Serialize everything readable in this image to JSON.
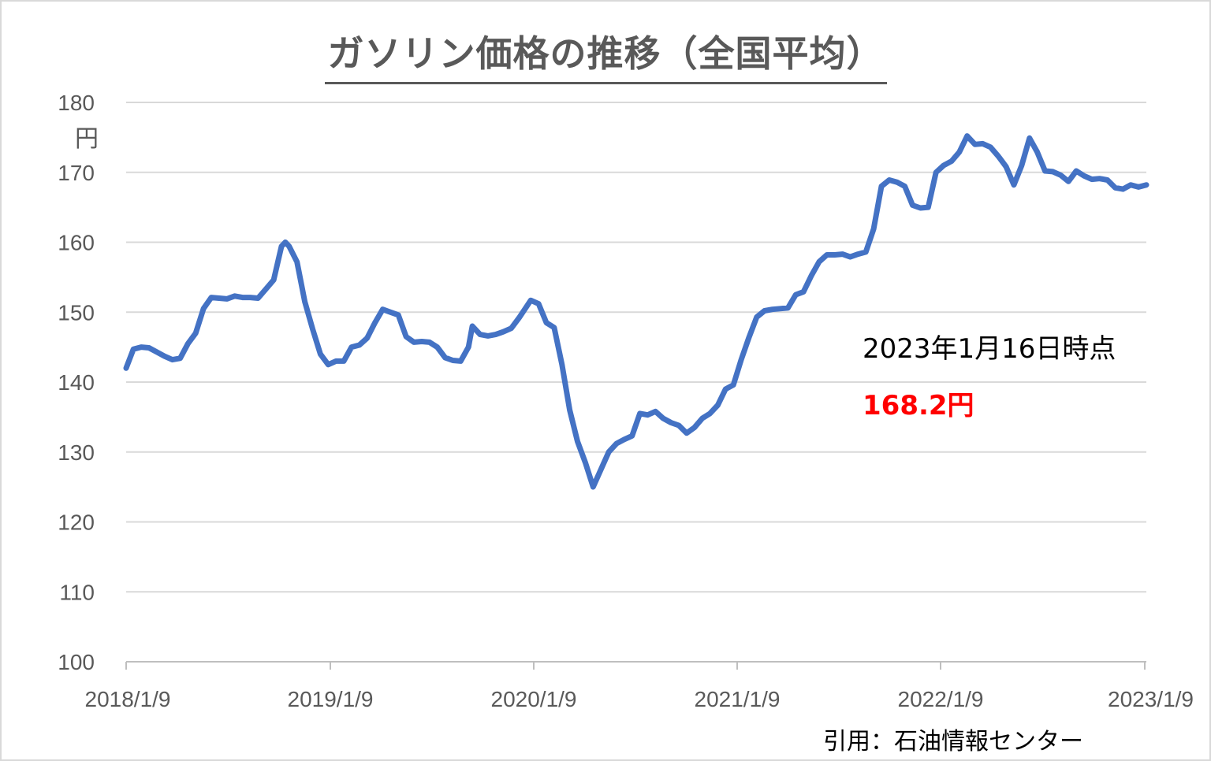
{
  "chart_data": {
    "type": "line",
    "title": "ガソリン価格の推移（全国平均）",
    "ylabel": "円",
    "xlabel": "",
    "ylim": [
      100,
      180
    ],
    "yticks": [
      100,
      110,
      120,
      130,
      140,
      150,
      160,
      170,
      180
    ],
    "xticks": [
      "2018/1/9",
      "2019/1/9",
      "2020/1/9",
      "2021/1/9",
      "2022/1/9",
      "2023/1/9"
    ],
    "xlim": [
      "2018/1/9",
      "2023/1/16"
    ],
    "grid": "horizontal",
    "legend": "none",
    "line_color": "#4472c4",
    "series": [
      {
        "name": "",
        "points": [
          [
            "2018-01-09",
            142.0
          ],
          [
            "2018-01-22",
            144.7
          ],
          [
            "2018-02-05",
            145.0
          ],
          [
            "2018-02-19",
            144.9
          ],
          [
            "2018-03-05",
            144.3
          ],
          [
            "2018-03-19",
            143.7
          ],
          [
            "2018-04-02",
            143.2
          ],
          [
            "2018-04-16",
            143.4
          ],
          [
            "2018-04-30",
            145.5
          ],
          [
            "2018-05-14",
            147.0
          ],
          [
            "2018-05-28",
            150.5
          ],
          [
            "2018-06-11",
            152.1
          ],
          [
            "2018-06-25",
            152.0
          ],
          [
            "2018-07-09",
            151.9
          ],
          [
            "2018-07-23",
            152.3
          ],
          [
            "2018-08-06",
            152.1
          ],
          [
            "2018-08-20",
            152.1
          ],
          [
            "2018-09-03",
            152.0
          ],
          [
            "2018-09-17",
            153.3
          ],
          [
            "2018-10-01",
            154.6
          ],
          [
            "2018-10-15",
            159.4
          ],
          [
            "2018-10-22",
            160.0
          ],
          [
            "2018-10-29",
            159.4
          ],
          [
            "2018-11-12",
            157.2
          ],
          [
            "2018-11-26",
            151.5
          ],
          [
            "2018-12-10",
            147.6
          ],
          [
            "2018-12-24",
            144.0
          ],
          [
            "2019-01-07",
            142.5
          ],
          [
            "2019-01-21",
            143.0
          ],
          [
            "2019-02-04",
            143.0
          ],
          [
            "2019-02-18",
            145.0
          ],
          [
            "2019-03-04",
            145.3
          ],
          [
            "2019-03-18",
            146.3
          ],
          [
            "2019-04-01",
            148.5
          ],
          [
            "2019-04-15",
            150.4
          ],
          [
            "2019-04-29",
            150.0
          ],
          [
            "2019-05-13",
            149.6
          ],
          [
            "2019-05-27",
            146.5
          ],
          [
            "2019-06-10",
            145.7
          ],
          [
            "2019-06-24",
            145.8
          ],
          [
            "2019-07-08",
            145.7
          ],
          [
            "2019-07-22",
            145.0
          ],
          [
            "2019-08-05",
            143.5
          ],
          [
            "2019-08-19",
            143.1
          ],
          [
            "2019-09-02",
            143.0
          ],
          [
            "2019-09-16",
            145.0
          ],
          [
            "2019-09-23",
            148.0
          ],
          [
            "2019-10-07",
            146.8
          ],
          [
            "2019-10-21",
            146.6
          ],
          [
            "2019-11-04",
            146.8
          ],
          [
            "2019-11-18",
            147.2
          ],
          [
            "2019-12-02",
            147.7
          ],
          [
            "2019-12-16",
            149.2
          ],
          [
            "2020-01-06",
            151.7
          ],
          [
            "2020-01-20",
            151.2
          ],
          [
            "2020-02-03",
            148.5
          ],
          [
            "2020-02-17",
            147.8
          ],
          [
            "2020-03-02",
            142.5
          ],
          [
            "2020-03-16",
            136.0
          ],
          [
            "2020-03-30",
            131.5
          ],
          [
            "2020-04-13",
            128.5
          ],
          [
            "2020-04-27",
            125.0
          ],
          [
            "2020-05-11",
            127.5
          ],
          [
            "2020-05-25",
            130.0
          ],
          [
            "2020-06-08",
            131.2
          ],
          [
            "2020-06-22",
            131.8
          ],
          [
            "2020-07-06",
            132.3
          ],
          [
            "2020-07-20",
            135.5
          ],
          [
            "2020-08-03",
            135.3
          ],
          [
            "2020-08-17",
            135.8
          ],
          [
            "2020-08-31",
            134.8
          ],
          [
            "2020-09-14",
            134.2
          ],
          [
            "2020-09-28",
            133.8
          ],
          [
            "2020-10-12",
            132.7
          ],
          [
            "2020-10-26",
            133.5
          ],
          [
            "2020-11-09",
            134.8
          ],
          [
            "2020-11-23",
            135.5
          ],
          [
            "2020-12-07",
            136.7
          ],
          [
            "2020-12-21",
            139.0
          ],
          [
            "2021-01-04",
            139.6
          ],
          [
            "2021-01-18",
            143.2
          ],
          [
            "2021-02-01",
            146.4
          ],
          [
            "2021-02-15",
            149.3
          ],
          [
            "2021-03-01",
            150.2
          ],
          [
            "2021-03-15",
            150.4
          ],
          [
            "2021-03-29",
            150.5
          ],
          [
            "2021-04-12",
            150.6
          ],
          [
            "2021-04-26",
            152.5
          ],
          [
            "2021-05-10",
            152.9
          ],
          [
            "2021-05-24",
            155.2
          ],
          [
            "2021-06-07",
            157.2
          ],
          [
            "2021-06-21",
            158.2
          ],
          [
            "2021-07-05",
            158.2
          ],
          [
            "2021-07-19",
            158.3
          ],
          [
            "2021-08-02",
            157.9
          ],
          [
            "2021-08-16",
            158.3
          ],
          [
            "2021-08-30",
            158.6
          ],
          [
            "2021-09-13",
            161.9
          ],
          [
            "2021-09-27",
            168.0
          ],
          [
            "2021-10-11",
            168.9
          ],
          [
            "2021-10-25",
            168.6
          ],
          [
            "2021-11-08",
            168.0
          ],
          [
            "2021-11-22",
            165.3
          ],
          [
            "2021-12-06",
            164.9
          ],
          [
            "2021-12-20",
            165.0
          ],
          [
            "2022-01-03",
            170.0
          ],
          [
            "2022-01-17",
            171.0
          ],
          [
            "2022-01-31",
            171.6
          ],
          [
            "2022-02-14",
            172.9
          ],
          [
            "2022-02-28",
            175.2
          ],
          [
            "2022-03-14",
            174.0
          ],
          [
            "2022-03-28",
            174.1
          ],
          [
            "2022-04-11",
            173.6
          ],
          [
            "2022-04-25",
            172.3
          ],
          [
            "2022-05-09",
            170.8
          ],
          [
            "2022-05-23",
            168.2
          ],
          [
            "2022-06-06",
            171.0
          ],
          [
            "2022-06-20",
            174.9
          ],
          [
            "2022-07-04",
            172.9
          ],
          [
            "2022-07-18",
            170.2
          ],
          [
            "2022-08-01",
            170.1
          ],
          [
            "2022-08-15",
            169.6
          ],
          [
            "2022-08-29",
            168.7
          ],
          [
            "2022-09-12",
            170.2
          ],
          [
            "2022-09-26",
            169.5
          ],
          [
            "2022-10-10",
            169.0
          ],
          [
            "2022-10-24",
            169.1
          ],
          [
            "2022-11-07",
            168.9
          ],
          [
            "2022-11-21",
            167.8
          ],
          [
            "2022-12-05",
            167.6
          ],
          [
            "2022-12-19",
            168.2
          ],
          [
            "2023-01-02",
            167.9
          ],
          [
            "2023-01-16",
            168.2
          ]
        ]
      }
    ],
    "annotations": [
      {
        "text": "2023年1月16日時点"
      },
      {
        "text": "168.2円",
        "color": "#ff0000"
      }
    ]
  },
  "source": "引用：石油情報センター"
}
